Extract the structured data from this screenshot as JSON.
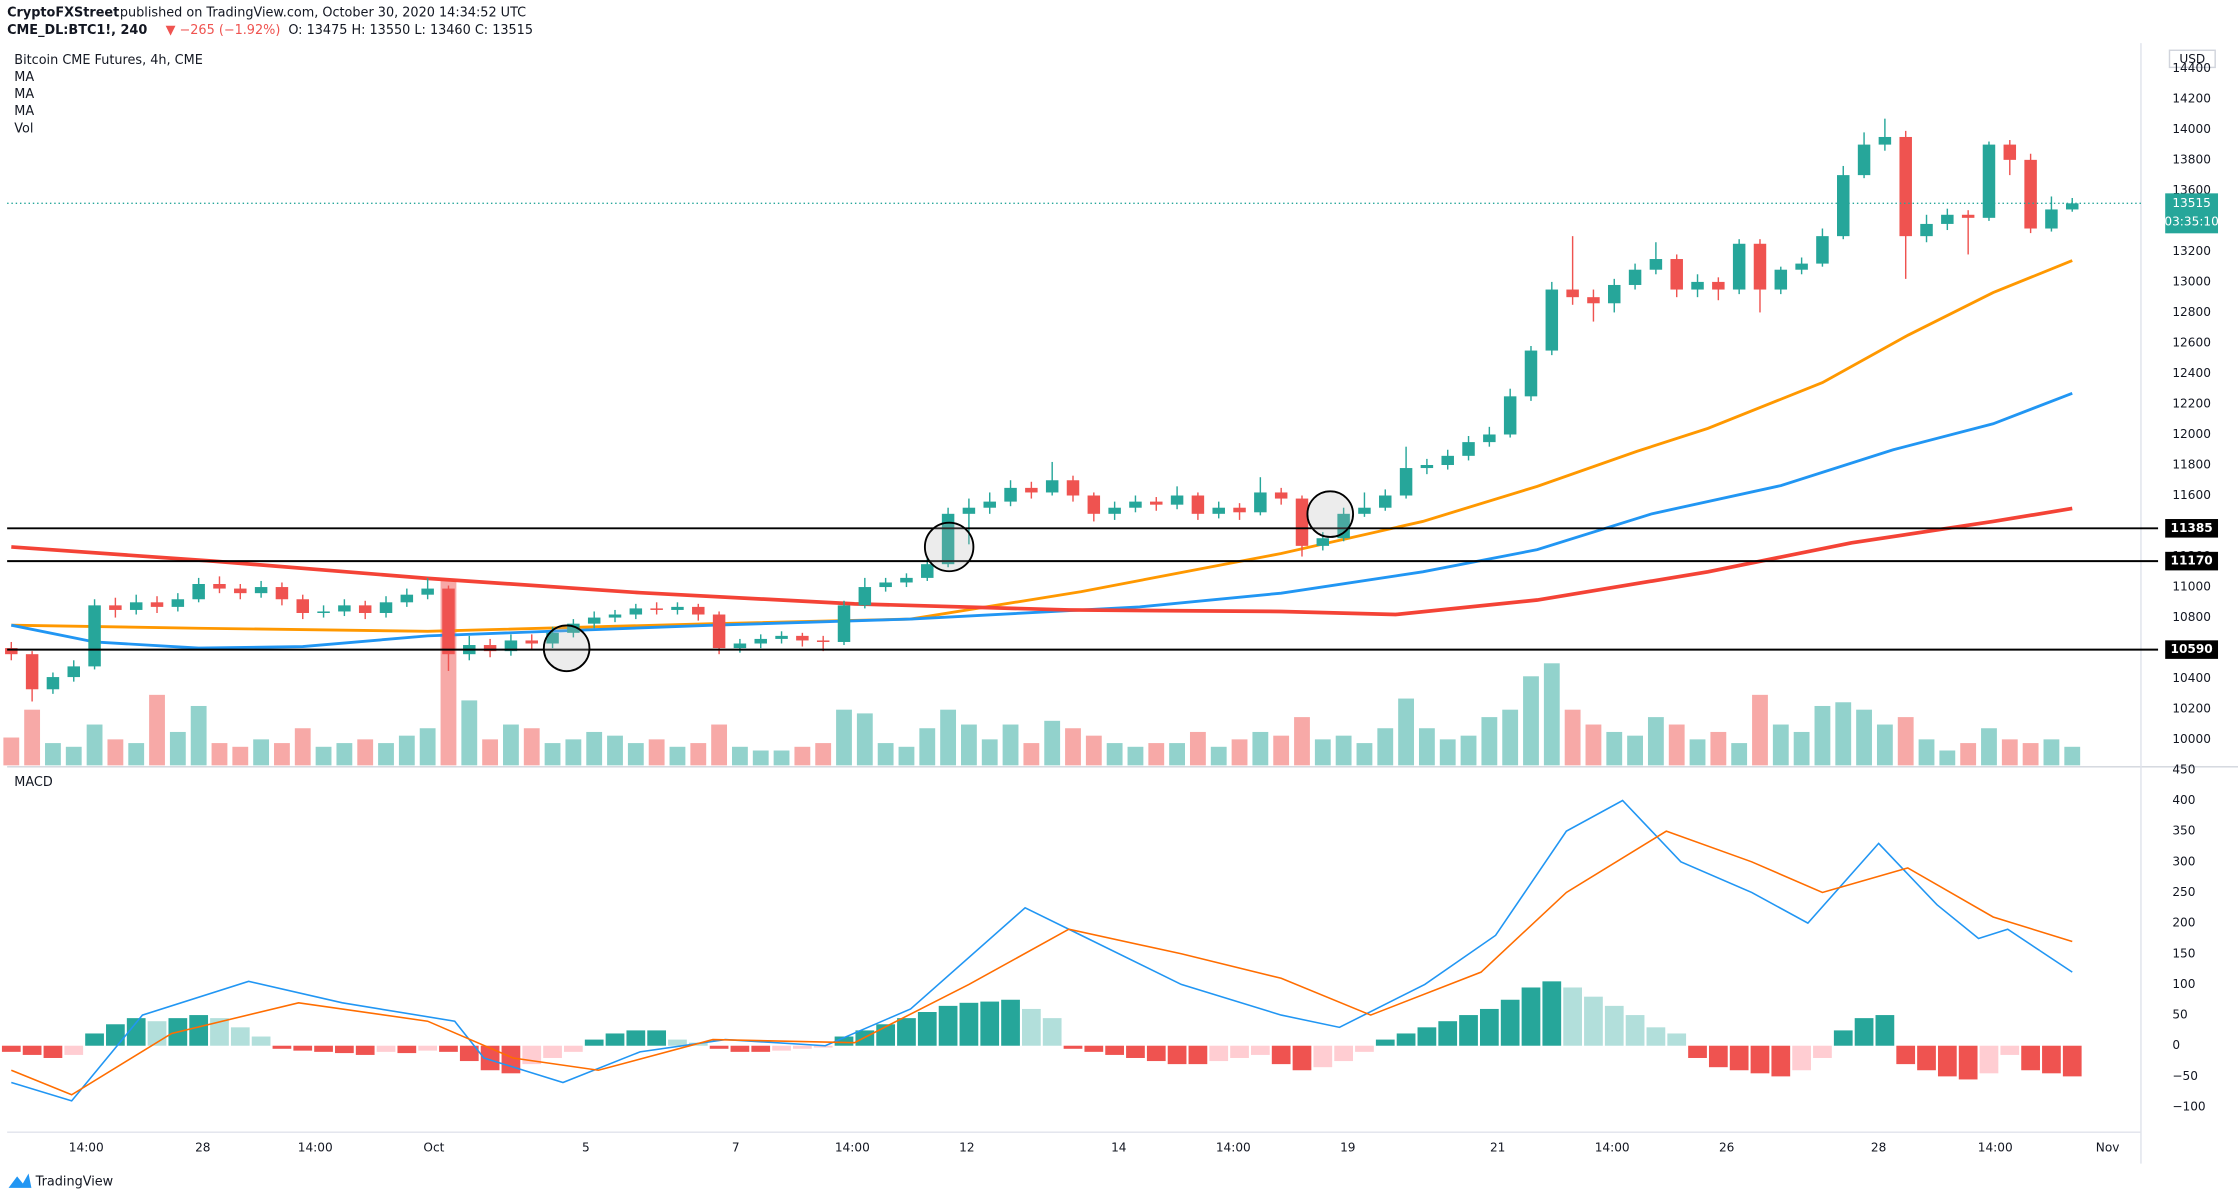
{
  "header": {
    "author": "CryptoFXStreet",
    "published": "published on TradingView.com, October 30, 2020 14:34:52 UTC",
    "symbol": "CME_DL:BTC1!, 240",
    "change": "▼ −265 (−1.92%)",
    "ohlc": "O: 13475 H: 13550 L: 13460 C: 13515",
    "brand": "TradingView"
  },
  "chart_data": [
    {
      "type": "candlestick",
      "title": "Bitcoin CME Futures, 4h, CME",
      "currency": "USD",
      "up_color": "#26a69a",
      "down_color": "#ef5350",
      "open": [
        10600,
        10560,
        10330,
        10410,
        10480,
        10880,
        10850,
        10900,
        10870,
        10920,
        11020,
        10990,
        10960,
        11000,
        10920,
        10830,
        10840,
        10880,
        10830,
        10900,
        10950,
        10990,
        10560,
        10620,
        10580,
        10650,
        10630,
        10700,
        10760,
        10800,
        10820,
        10860,
        10850,
        10870,
        10820,
        10600,
        10630,
        10660,
        10680,
        10650,
        10640,
        10880,
        11000,
        11030,
        11060,
        11150,
        11480,
        11520,
        11560,
        11650,
        11620,
        11700,
        11600,
        11480,
        11520,
        11560,
        11540,
        11600,
        11480,
        11520,
        11490,
        11620,
        11580,
        11270,
        11320,
        11480,
        11520,
        11600,
        11780,
        11800,
        11860,
        11950,
        12000,
        12250,
        12550,
        12950,
        12900,
        12860,
        12980,
        13080,
        13150,
        12950,
        13000,
        12950,
        13250,
        12950,
        13080,
        13120,
        13300,
        13700,
        13900,
        13950,
        13300,
        13380,
        13440,
        13420,
        13900,
        13800,
        13350,
        13475
      ],
      "high": [
        10640,
        10580,
        10440,
        10520,
        10920,
        10930,
        10950,
        10940,
        10960,
        11060,
        11070,
        11020,
        11040,
        11030,
        10950,
        10880,
        10920,
        10910,
        10940,
        10990,
        11060,
        11010,
        10680,
        10660,
        10690,
        10690,
        10740,
        10790,
        10840,
        10850,
        10890,
        10900,
        10900,
        10890,
        10840,
        10660,
        10690,
        10710,
        10700,
        10680,
        10910,
        11060,
        11060,
        11090,
        11200,
        11520,
        11580,
        11620,
        11700,
        11690,
        11820,
        11730,
        11620,
        11560,
        11600,
        11590,
        11660,
        11620,
        11560,
        11550,
        11720,
        11650,
        11600,
        11360,
        11520,
        11620,
        11640,
        11920,
        11840,
        11900,
        11990,
        12050,
        12300,
        12580,
        13000,
        13300,
        12950,
        13020,
        13120,
        13260,
        13180,
        13050,
        13030,
        13280,
        13280,
        13100,
        13160,
        13350,
        13760,
        13980,
        14070,
        13990,
        13440,
        13480,
        13470,
        13920,
        13930,
        13840,
        13560,
        13550
      ],
      "low": [
        10520,
        10250,
        10300,
        10380,
        10460,
        10800,
        10820,
        10830,
        10840,
        10900,
        10960,
        10920,
        10930,
        10880,
        10790,
        10800,
        10810,
        10790,
        10800,
        10870,
        10920,
        10450,
        10520,
        10540,
        10550,
        10590,
        10600,
        10670,
        10730,
        10770,
        10790,
        10820,
        10820,
        10780,
        10560,
        10570,
        10600,
        10630,
        10610,
        10580,
        10620,
        10860,
        10970,
        11000,
        11040,
        11130,
        11280,
        11480,
        11530,
        11580,
        11600,
        11560,
        11430,
        11440,
        11490,
        11500,
        11510,
        11440,
        11450,
        11440,
        11470,
        11540,
        11200,
        11240,
        11300,
        11460,
        11500,
        11580,
        11740,
        11770,
        11830,
        11920,
        11980,
        12220,
        12520,
        12850,
        12740,
        12800,
        12950,
        13050,
        12900,
        12900,
        12880,
        12920,
        12800,
        12920,
        13050,
        13100,
        13280,
        13680,
        13860,
        13020,
        13260,
        13340,
        13180,
        13400,
        13700,
        13320,
        13330,
        13460
      ],
      "close": [
        10560,
        10330,
        10410,
        10480,
        10880,
        10850,
        10900,
        10870,
        10920,
        11020,
        10990,
        10960,
        11000,
        10920,
        10830,
        10840,
        10880,
        10830,
        10900,
        10950,
        10990,
        10560,
        10620,
        10580,
        10650,
        10630,
        10700,
        10760,
        10800,
        10820,
        10860,
        10850,
        10870,
        10820,
        10600,
        10630,
        10660,
        10680,
        10650,
        10640,
        10880,
        11000,
        11030,
        11060,
        11150,
        11480,
        11520,
        11560,
        11650,
        11620,
        11700,
        11600,
        11480,
        11520,
        11560,
        11540,
        11600,
        11480,
        11520,
        11490,
        11620,
        11580,
        11270,
        11320,
        11480,
        11520,
        11600,
        11780,
        11800,
        11860,
        11950,
        12000,
        12250,
        12550,
        12950,
        12900,
        12860,
        12980,
        13080,
        13150,
        12950,
        13000,
        12950,
        13250,
        12950,
        13080,
        13120,
        13300,
        13700,
        13900,
        13950,
        13300,
        13380,
        13440,
        13420,
        13900,
        13800,
        13350,
        13475,
        13515
      ],
      "volume": {
        "name": "Vol",
        "values": [
          15,
          30,
          12,
          10,
          22,
          14,
          12,
          38,
          18,
          32,
          12,
          10,
          14,
          12,
          20,
          10,
          12,
          14,
          12,
          16,
          20,
          100,
          35,
          14,
          22,
          20,
          12,
          14,
          18,
          16,
          12,
          14,
          10,
          12,
          22,
          10,
          8,
          8,
          10,
          12,
          30,
          28,
          12,
          10,
          20,
          30,
          22,
          14,
          22,
          12,
          24,
          20,
          16,
          12,
          10,
          12,
          12,
          18,
          10,
          14,
          18,
          16,
          26,
          14,
          16,
          12,
          20,
          36,
          20,
          14,
          16,
          26,
          30,
          48,
          55,
          30,
          22,
          18,
          16,
          26,
          22,
          14,
          18,
          12,
          38,
          22,
          18,
          32,
          34,
          30,
          22,
          26,
          14,
          8,
          12,
          20,
          14,
          12,
          14,
          10
        ]
      },
      "ma": [
        {
          "name": "MA",
          "color": "#ff9800",
          "x": [
            0,
            9,
            20,
            33.7,
            43.2,
            51.4,
            61,
            67.8,
            73.3,
            78.1,
            81.5,
            87,
            91.1,
            95.2,
            99
          ],
          "values": [
            10750,
            10730,
            10710,
            10760,
            10790,
            10970,
            11220,
            11430,
            11660,
            11890,
            12040,
            12340,
            12650,
            12930,
            13140
          ]
        },
        {
          "name": "MA",
          "color": "#2196f3",
          "x": [
            0,
            4,
            9,
            14,
            20,
            33.7,
            43.2,
            54.2,
            61,
            67.8,
            73.3,
            78.8,
            85,
            90.4,
            95.2,
            99
          ],
          "values": [
            10750,
            10640,
            10600,
            10610,
            10680,
            10750,
            10790,
            10870,
            10960,
            11100,
            11245,
            11480,
            11665,
            11900,
            12070,
            12270
          ]
        },
        {
          "name": "MA",
          "color": "#f44336",
          "x": [
            0,
            9.7,
            20,
            30.2,
            40.5,
            50.8,
            61,
            66.5,
            73.3,
            81.5,
            88.4,
            95.2,
            99
          ],
          "values": [
            11263,
            11170,
            11057,
            10963,
            10890,
            10850,
            10840,
            10820,
            10915,
            11100,
            11290,
            11430,
            11515
          ]
        }
      ],
      "levels": [
        11385,
        11170,
        10590
      ],
      "price_line": {
        "value": 13515,
        "countdown": "03:35:10",
        "color": "#26a69a"
      },
      "ylim": [
        9822,
        14565
      ],
      "yticks": [
        10000,
        10200,
        10400,
        10600,
        10800,
        11000,
        11200,
        11400,
        11600,
        11800,
        12000,
        12200,
        12400,
        12600,
        12800,
        13000,
        13200,
        13400,
        13600,
        13800,
        14000,
        14200,
        14400
      ],
      "xlim": [
        -0.2,
        102.3
      ],
      "xticks": [
        {
          "value": 3.6,
          "label": "14:00"
        },
        {
          "value": 9.2,
          "label": "28"
        },
        {
          "value": 14.6,
          "label": "14:00"
        },
        {
          "value": 20.3,
          "label": "Oct"
        },
        {
          "value": 27.6,
          "label": "5"
        },
        {
          "value": 34.8,
          "label": "7"
        },
        {
          "value": 40.4,
          "label": "14:00"
        },
        {
          "value": 45.9,
          "label": "12"
        },
        {
          "value": 53.2,
          "label": "14"
        },
        {
          "value": 58.7,
          "label": "14:00"
        },
        {
          "value": 64.2,
          "label": "19"
        },
        {
          "value": 71.4,
          "label": "21"
        },
        {
          "value": 76.9,
          "label": "14:00"
        },
        {
          "value": 82.4,
          "label": "26"
        },
        {
          "value": 89.7,
          "label": "28"
        },
        {
          "value": 95.3,
          "label": "14:00"
        },
        {
          "value": 100.7,
          "label": "Nov"
        }
      ],
      "grid": false
    },
    {
      "type": "macd",
      "title": "MACD",
      "histogram_colors": [
        "#26a69a",
        "#b2dfdb",
        "#ef5350",
        "#ffcdd2"
      ],
      "histogram": [
        -10,
        -15,
        -20,
        -15,
        20,
        35,
        45,
        40,
        45,
        50,
        45,
        30,
        15,
        -5,
        -8,
        -10,
        -12,
        -15,
        -10,
        -12,
        -8,
        -10,
        -25,
        -40,
        -45,
        -30,
        -20,
        -10,
        10,
        20,
        25,
        25,
        10,
        5,
        -5,
        -10,
        -10,
        -8,
        -5,
        -3,
        15,
        25,
        35,
        45,
        55,
        65,
        70,
        72,
        75,
        60,
        45,
        -5,
        -10,
        -15,
        -20,
        -25,
        -30,
        -30,
        -25,
        -20,
        -15,
        -30,
        -40,
        -35,
        -25,
        -10,
        10,
        20,
        30,
        40,
        50,
        60,
        75,
        95,
        105,
        95,
        80,
        65,
        50,
        30,
        20,
        -20,
        -35,
        -40,
        -45,
        -50,
        -40,
        -20,
        25,
        45,
        50,
        -30,
        -40,
        -50,
        -55,
        -45,
        -15,
        -40,
        -45,
        -50
      ],
      "lines": [
        {
          "color": "#2196f3",
          "x": [
            0,
            2.9,
            6.3,
            11.4,
            15.9,
            21.3,
            22.7,
            26.5,
            30.2,
            34.3,
            39.1,
            43.2,
            48.7,
            51.4,
            56.2,
            61,
            63.8,
            67.9,
            71.3,
            74.7,
            77.4,
            80.2,
            83.6,
            86.3,
            89.7,
            92.5,
            94.5,
            95.9,
            99
          ],
          "values": [
            -60,
            -90,
            50,
            105,
            70,
            40,
            -20,
            -60,
            -10,
            10,
            0,
            60,
            225,
            180,
            100,
            50,
            30,
            100,
            180,
            350,
            400,
            300,
            250,
            200,
            330,
            230,
            175,
            190,
            120
          ]
        },
        {
          "color": "#ff6d00",
          "x": [
            0,
            2.9,
            7.7,
            13.8,
            20,
            24.1,
            28.2,
            33.7,
            40.5,
            46,
            50.8,
            56.2,
            61,
            65.3,
            70.6,
            74.7,
            79.5,
            83.6,
            87,
            91.1,
            95.2,
            99
          ],
          "values": [
            -40,
            -80,
            20,
            70,
            40,
            -20,
            -40,
            10,
            5,
            100,
            190,
            150,
            110,
            50,
            120,
            250,
            350,
            300,
            250,
            290,
            210,
            170
          ]
        }
      ],
      "ylim": [
        -141,
        455
      ],
      "yticks": [
        {
          "value": -100,
          "label": "−100"
        },
        {
          "value": -50,
          "label": "−50"
        },
        0,
        50,
        100,
        150,
        200,
        250,
        300,
        350,
        400,
        450
      ]
    }
  ]
}
